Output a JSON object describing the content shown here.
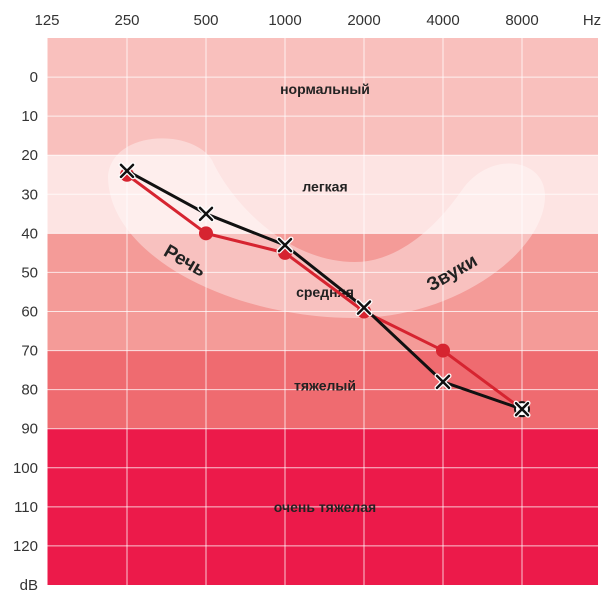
{
  "chart_data": {
    "type": "line",
    "x_ticks": [
      "125",
      "250",
      "500",
      "1000",
      "2000",
      "4000",
      "8000"
    ],
    "x_unit": "Hz",
    "y_ticks": [
      0,
      10,
      20,
      30,
      40,
      50,
      60,
      70,
      80,
      90,
      100,
      110,
      120
    ],
    "y_unit": "dB",
    "ylim": [
      -10,
      130
    ],
    "y_inverted": true,
    "zones": [
      {
        "label": "нормальный",
        "from": -10,
        "to": 20,
        "color": "#f9c0bd"
      },
      {
        "label": "легкая",
        "from": 20,
        "to": 40,
        "color": "#fde4e3"
      },
      {
        "label": "средняя",
        "from": 40,
        "to": 70,
        "color": "#f49b98"
      },
      {
        "label": "тяжелый",
        "from": 70,
        "to": 90,
        "color": "#ef6b70"
      },
      {
        "label": "очень тяжелая",
        "from": 90,
        "to": 130,
        "color": "#ec1a4a"
      }
    ],
    "overlay_labels": [
      "Речь",
      "Звуки"
    ],
    "series": [
      {
        "marker": "circle",
        "color": "#d62430",
        "x": [
          "250",
          "500",
          "1000",
          "2000",
          "4000",
          "8000"
        ],
        "values": [
          25,
          40,
          45,
          60,
          70,
          85
        ]
      },
      {
        "marker": "x",
        "color": "#111111",
        "x": [
          "250",
          "500",
          "1000",
          "2000",
          "4000",
          "8000"
        ],
        "values": [
          24,
          35,
          43,
          59,
          78,
          85
        ]
      }
    ]
  }
}
